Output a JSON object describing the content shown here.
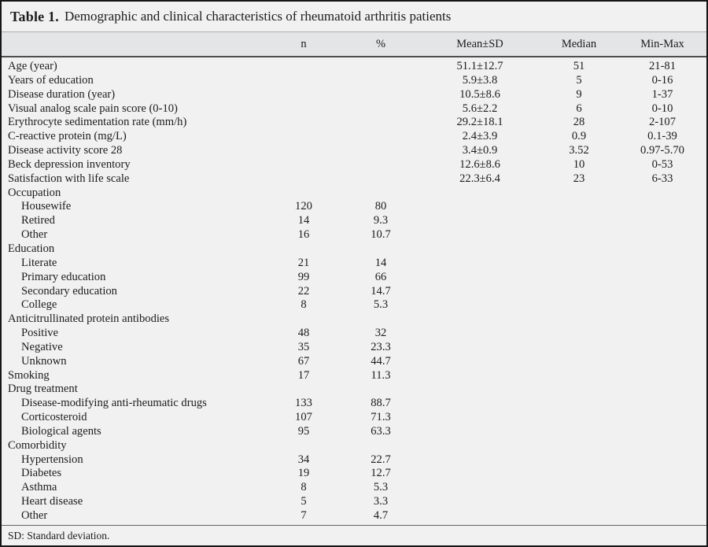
{
  "title": {
    "label": "Table 1.",
    "caption": "Demographic and clinical characteristics of rheumatoid arthritis patients"
  },
  "columns": {
    "n": "n",
    "pct": "%",
    "mean_sd": "Mean±SD",
    "median": "Median",
    "min_max": "Min-Max"
  },
  "rows": [
    {
      "label": "Age (year)",
      "indent": 0,
      "n": "",
      "pct": "",
      "mean_sd": "51.1±12.7",
      "median": "51",
      "min_max": "21-81"
    },
    {
      "label": "Years of education",
      "indent": 0,
      "n": "",
      "pct": "",
      "mean_sd": "5.9±3.8",
      "median": "5",
      "min_max": "0-16"
    },
    {
      "label": "Disease duration (year)",
      "indent": 0,
      "n": "",
      "pct": "",
      "mean_sd": "10.5±8.6",
      "median": "9",
      "min_max": "1-37"
    },
    {
      "label": "Visual analog scale pain score (0-10)",
      "indent": 0,
      "n": "",
      "pct": "",
      "mean_sd": "5.6±2.2",
      "median": "6",
      "min_max": "0-10"
    },
    {
      "label": "Erythrocyte sedimentation rate (mm/h)",
      "indent": 0,
      "n": "",
      "pct": "",
      "mean_sd": "29.2±18.1",
      "median": "28",
      "min_max": "2-107"
    },
    {
      "label": "C-reactive protein (mg/L)",
      "indent": 0,
      "n": "",
      "pct": "",
      "mean_sd": "2.4±3.9",
      "median": "0.9",
      "min_max": "0.1-39"
    },
    {
      "label": "Disease activity score 28",
      "indent": 0,
      "n": "",
      "pct": "",
      "mean_sd": "3.4±0.9",
      "median": "3.52",
      "min_max": "0.97-5.70"
    },
    {
      "label": "Beck depression inventory",
      "indent": 0,
      "n": "",
      "pct": "",
      "mean_sd": "12.6±8.6",
      "median": "10",
      "min_max": "0-53"
    },
    {
      "label": "Satisfaction with life scale",
      "indent": 0,
      "n": "",
      "pct": "",
      "mean_sd": "22.3±6.4",
      "median": "23",
      "min_max": "6-33"
    },
    {
      "label": "Occupation",
      "indent": 0,
      "n": "",
      "pct": "",
      "mean_sd": "",
      "median": "",
      "min_max": ""
    },
    {
      "label": "Housewife",
      "indent": 1,
      "n": "120",
      "pct": "80",
      "mean_sd": "",
      "median": "",
      "min_max": ""
    },
    {
      "label": "Retired",
      "indent": 1,
      "n": "14",
      "pct": "9.3",
      "mean_sd": "",
      "median": "",
      "min_max": ""
    },
    {
      "label": "Other",
      "indent": 1,
      "n": "16",
      "pct": "10.7",
      "mean_sd": "",
      "median": "",
      "min_max": ""
    },
    {
      "label": "Education",
      "indent": 0,
      "n": "",
      "pct": "",
      "mean_sd": "",
      "median": "",
      "min_max": ""
    },
    {
      "label": "Literate",
      "indent": 1,
      "n": "21",
      "pct": "14",
      "mean_sd": "",
      "median": "",
      "min_max": ""
    },
    {
      "label": "Primary education",
      "indent": 1,
      "n": "99",
      "pct": "66",
      "mean_sd": "",
      "median": "",
      "min_max": ""
    },
    {
      "label": "Secondary education",
      "indent": 1,
      "n": "22",
      "pct": "14.7",
      "mean_sd": "",
      "median": "",
      "min_max": ""
    },
    {
      "label": "College",
      "indent": 1,
      "n": "8",
      "pct": "5.3",
      "mean_sd": "",
      "median": "",
      "min_max": ""
    },
    {
      "label": "Anticitrullinated protein antibodies",
      "indent": 0,
      "n": "",
      "pct": "",
      "mean_sd": "",
      "median": "",
      "min_max": ""
    },
    {
      "label": "Positive",
      "indent": 1,
      "n": "48",
      "pct": "32",
      "mean_sd": "",
      "median": "",
      "min_max": ""
    },
    {
      "label": "Negative",
      "indent": 1,
      "n": "35",
      "pct": "23.3",
      "mean_sd": "",
      "median": "",
      "min_max": ""
    },
    {
      "label": "Unknown",
      "indent": 1,
      "n": "67",
      "pct": "44.7",
      "mean_sd": "",
      "median": "",
      "min_max": ""
    },
    {
      "label": "Smoking",
      "indent": 0,
      "n": "17",
      "pct": "11.3",
      "mean_sd": "",
      "median": "",
      "min_max": ""
    },
    {
      "label": "Drug treatment",
      "indent": 0,
      "n": "",
      "pct": "",
      "mean_sd": "",
      "median": "",
      "min_max": ""
    },
    {
      "label": "Disease-modifying anti-rheumatic drugs",
      "indent": 1,
      "n": "133",
      "pct": "88.7",
      "mean_sd": "",
      "median": "",
      "min_max": ""
    },
    {
      "label": "Corticosteroid",
      "indent": 1,
      "n": "107",
      "pct": "71.3",
      "mean_sd": "",
      "median": "",
      "min_max": ""
    },
    {
      "label": "Biological agents",
      "indent": 1,
      "n": "95",
      "pct": "63.3",
      "mean_sd": "",
      "median": "",
      "min_max": ""
    },
    {
      "label": "Comorbidity",
      "indent": 0,
      "n": "",
      "pct": "",
      "mean_sd": "",
      "median": "",
      "min_max": ""
    },
    {
      "label": "Hypertension",
      "indent": 1,
      "n": "34",
      "pct": "22.7",
      "mean_sd": "",
      "median": "",
      "min_max": ""
    },
    {
      "label": "Diabetes",
      "indent": 1,
      "n": "19",
      "pct": "12.7",
      "mean_sd": "",
      "median": "",
      "min_max": ""
    },
    {
      "label": "Asthma",
      "indent": 1,
      "n": "8",
      "pct": "5.3",
      "mean_sd": "",
      "median": "",
      "min_max": ""
    },
    {
      "label": "Heart disease",
      "indent": 1,
      "n": "5",
      "pct": "3.3",
      "mean_sd": "",
      "median": "",
      "min_max": ""
    },
    {
      "label": "Other",
      "indent": 1,
      "n": "7",
      "pct": "4.7",
      "mean_sd": "",
      "median": "",
      "min_max": ""
    }
  ],
  "footnote": "SD: Standard deviation.",
  "colors": {
    "page_bg": "#f1f1f2",
    "header_band_bg": "#e4e5e7",
    "border": "#161616",
    "text": "#1c1c1c"
  }
}
